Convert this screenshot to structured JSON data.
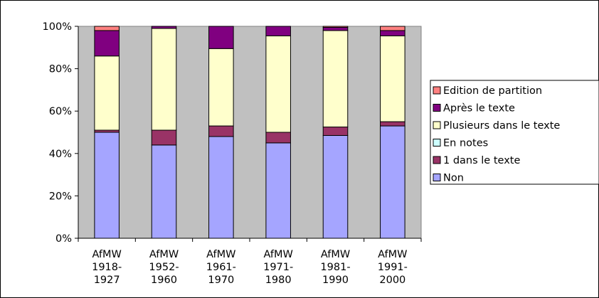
{
  "chart_data": {
    "type": "bar",
    "stacked": true,
    "percent_stacked": true,
    "categories": [
      [
        "AfMW",
        "1918-",
        "1927"
      ],
      [
        "AfMW",
        "1952-",
        "1960"
      ],
      [
        "AfMW",
        "1961-",
        "1970"
      ],
      [
        "AfMW",
        "1971-",
        "1980"
      ],
      [
        "AfMW",
        "1981-",
        "1990"
      ],
      [
        "AfMW",
        "1991-",
        "2000"
      ]
    ],
    "series": [
      {
        "name": "Non",
        "color": "#a5a5ff",
        "values": [
          50,
          44,
          48,
          45,
          48.5,
          53
        ]
      },
      {
        "name": "1 dans le texte",
        "color": "#993366",
        "values": [
          1,
          7,
          5,
          5,
          4,
          2
        ]
      },
      {
        "name": "En notes",
        "color": "#ccffff",
        "values": [
          0,
          0,
          0,
          0,
          0,
          0
        ]
      },
      {
        "name": "Plusieurs dans le texte",
        "color": "#ffffcc",
        "values": [
          35,
          48,
          36.5,
          45.5,
          45.5,
          40.5
        ]
      },
      {
        "name": "Après le texte",
        "color": "#800080",
        "values": [
          12,
          1,
          10.5,
          4.5,
          1.5,
          2.5
        ]
      },
      {
        "name": "Edition de partition",
        "color": "#ff8080",
        "values": [
          2,
          0,
          0,
          0,
          0.5,
          2
        ]
      }
    ],
    "y_ticks": [
      "0%",
      "20%",
      "40%",
      "60%",
      "80%",
      "100%"
    ],
    "ylim": [
      0,
      100
    ],
    "grid": false,
    "plot_background": "#c0c0c0",
    "legend_placement": "right",
    "title": "",
    "xlabel": "",
    "ylabel": ""
  }
}
